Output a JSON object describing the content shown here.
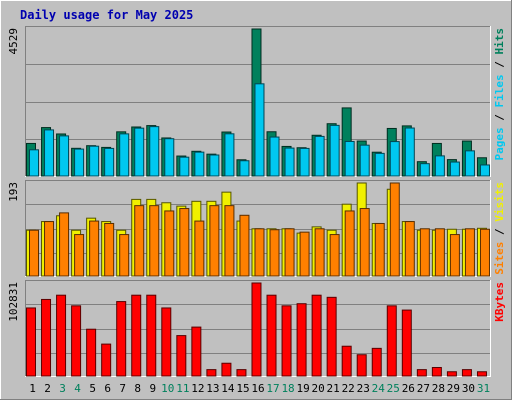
{
  "chart_data": {
    "type": "bar",
    "title": "Daily usage for May 2025",
    "categories": [
      "1",
      "2",
      "3",
      "4",
      "5",
      "6",
      "7",
      "8",
      "9",
      "10",
      "11",
      "12",
      "13",
      "14",
      "15",
      "16",
      "17",
      "18",
      "19",
      "20",
      "21",
      "22",
      "23",
      "24",
      "25",
      "26",
      "27",
      "28",
      "29",
      "30",
      "31"
    ],
    "weekend_days": [
      "3",
      "4",
      "10",
      "11",
      "17",
      "18",
      "24",
      "25",
      "31"
    ],
    "grid": true,
    "panels": [
      {
        "id": "hits_files_pages",
        "ylabel_parts": [
          "Pages",
          "Files",
          "Hits"
        ],
        "ymax_label": "4529",
        "ylim": [
          0,
          4529
        ],
        "series": [
          {
            "name": "Hits",
            "color": "#00805c",
            "values": [
              1003,
              1492,
              1295,
              853,
              934,
              881,
              1361,
              1510,
              1553,
              1172,
              615,
              761,
              673,
              1355,
              500,
              4529,
              1363,
              911,
              871,
              1255,
              1611,
              2098,
              1077,
              733,
              1465,
              1544,
              441,
              1003,
              505,
              1077,
              562
            ]
          },
          {
            "name": "Files",
            "color": "#00c8f0",
            "values": [
              807,
              1420,
              1236,
              829,
              918,
              850,
              1298,
              1474,
              1521,
              1149,
              580,
              735,
              647,
              1300,
              470,
              2840,
              1200,
              860,
              850,
              1220,
              1560,
              1064,
              950,
              697,
              1060,
              1478,
              380,
              620,
              430,
              775,
              340
            ]
          }
        ]
      },
      {
        "id": "visits_sites",
        "ylabel_parts": [
          "Sites",
          "Visits"
        ],
        "ymax_label": "193",
        "ylim": [
          0,
          193
        ],
        "series": [
          {
            "name": "Visits",
            "color": "#f0f000",
            "values": [
              95,
              113,
              125,
              95,
              120,
              113,
              95,
              159,
              159,
              152,
              145,
              155,
              155,
              174,
              114,
              98,
              98,
              98,
              89,
              102,
              95,
              149,
              193,
              109,
              180,
              113,
              95,
              95,
              97,
              97,
              99
            ]
          },
          {
            "name": "Sites",
            "color": "#ff8000",
            "values": [
              95,
              113,
              131,
              86,
              114,
              109,
              86,
              146,
              146,
              135,
              140,
              114,
              146,
              146,
              126,
              98,
              96,
              98,
              91,
              98,
              86,
              135,
              140,
              109,
              193,
              113,
              98,
              98,
              86,
              98,
              97
            ]
          }
        ]
      },
      {
        "id": "kbytes",
        "ylabel_parts": [
          "KBytes"
        ],
        "ymax_label": "102831",
        "ylim": [
          0,
          102831
        ],
        "series": [
          {
            "name": "KBytes",
            "color": "#ff0000",
            "values": [
              75240,
              84643,
              89343,
              77590,
              51727,
              35272,
              82293,
              89343,
              89343,
              75240,
              44676,
              54079,
              7053,
              14105,
              7053,
              102831,
              89343,
              77590,
              79940,
              89343,
              86993,
              32920,
              23514,
              30570,
              77590,
              72893,
              7053,
              9402,
              4703,
              7053,
              4703
            ]
          }
        ]
      }
    ]
  }
}
